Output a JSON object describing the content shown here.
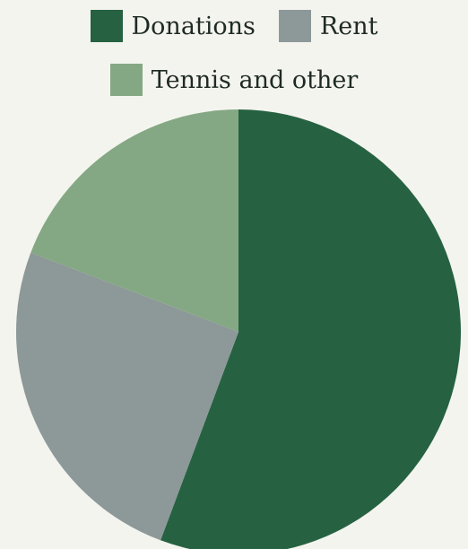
{
  "chart_data": {
    "type": "pie",
    "title": "",
    "legend_position": "top",
    "start_angle": "12 o'clock",
    "direction": "clockwise",
    "slices": [
      {
        "label": "Donations",
        "value": 55.7,
        "color": "#266242"
      },
      {
        "label": "Rent",
        "value": 25.1,
        "color": "#8d9899"
      },
      {
        "label": "Tennis and other",
        "value": 19.2,
        "color": "#84a883"
      }
    ]
  }
}
